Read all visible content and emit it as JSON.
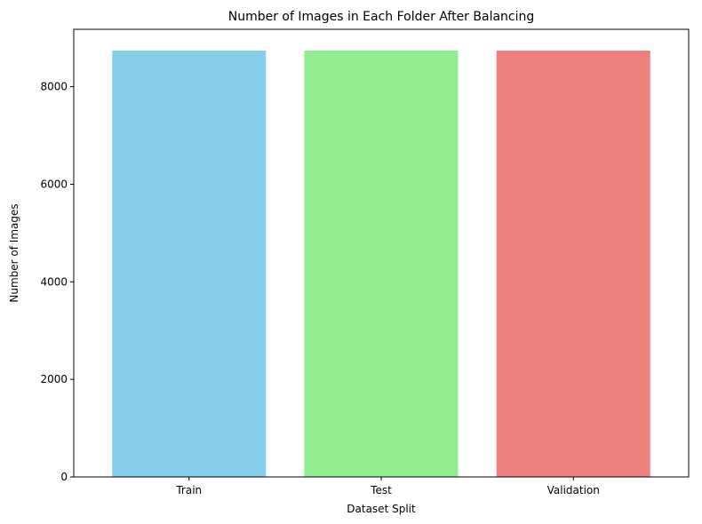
{
  "chart_data": {
    "type": "bar",
    "title": "Number of Images in Each Folder After Balancing",
    "xlabel": "Dataset Split",
    "ylabel": "Number of Images",
    "categories": [
      "Train",
      "Test",
      "Validation"
    ],
    "values": [
      8740,
      8740,
      8740
    ],
    "colors": [
      "#87ceeb",
      "#90ee90",
      "#f08080"
    ],
    "ylim": [
      0,
      9177
    ],
    "yticks": [
      0,
      2000,
      4000,
      6000,
      8000
    ],
    "ytick_labels": [
      "0",
      "2000",
      "4000",
      "6000",
      "8000"
    ],
    "grid": false,
    "legend": "none"
  }
}
